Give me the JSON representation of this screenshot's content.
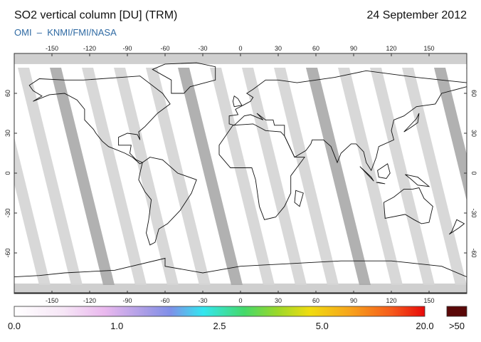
{
  "header": {
    "title": "SO2 vertical column [DU] (TRM)",
    "date": "24 September 2012",
    "source": "OMI  –  KNMI/FMI/NASA"
  },
  "map": {
    "lon_ticks": [
      -150,
      -120,
      -90,
      -60,
      -30,
      0,
      30,
      60,
      90,
      120,
      150
    ],
    "lat_ticks": [
      60,
      30,
      0,
      -30,
      -60
    ]
  },
  "colorbar": {
    "labels": [
      "0.0",
      "1.0",
      "2.5",
      "5.0",
      "20.0"
    ],
    "overflow_label": ">50"
  }
}
